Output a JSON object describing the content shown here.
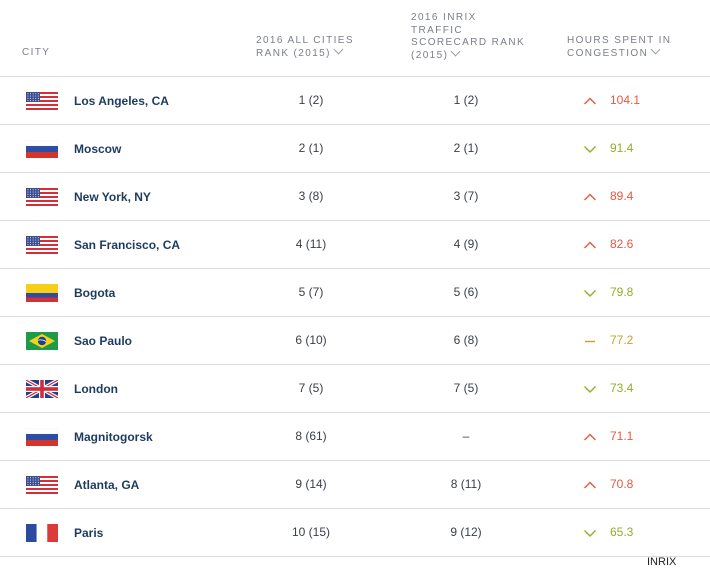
{
  "header": {
    "city": "CITY",
    "all_cities_rank": "2016 ALL CITIES RANK (2015)",
    "inrix_rank": "2016 INRIX TRAFFIC SCORECARD RANK (2015)",
    "hours": "HOURS SPENT IN CONGESTION"
  },
  "colors": {
    "up": "#e8573f",
    "down": "#8fae2c",
    "flat": "#c9a227",
    "city_text": "#1f3a5f"
  },
  "rows": [
    {
      "city": "Los Angeles, CA",
      "flag": "usa-flag-icon",
      "all_rank": "1 (2)",
      "inrix_rank": "1 (2)",
      "trend": "up",
      "hours": "104.1"
    },
    {
      "city": "Moscow",
      "flag": "russia-flag-icon",
      "all_rank": "2 (1)",
      "inrix_rank": "2 (1)",
      "trend": "down",
      "hours": "91.4"
    },
    {
      "city": "New York, NY",
      "flag": "usa-flag-icon",
      "all_rank": "3 (8)",
      "inrix_rank": "3 (7)",
      "trend": "up",
      "hours": "89.4"
    },
    {
      "city": "San Francisco, CA",
      "flag": "usa-flag-icon",
      "all_rank": "4 (11)",
      "inrix_rank": "4 (9)",
      "trend": "up",
      "hours": "82.6"
    },
    {
      "city": "Bogota",
      "flag": "colombia-flag-icon",
      "all_rank": "5 (7)",
      "inrix_rank": "5 (6)",
      "trend": "down",
      "hours": "79.8"
    },
    {
      "city": "Sao Paulo",
      "flag": "brazil-flag-icon",
      "all_rank": "6 (10)",
      "inrix_rank": "6 (8)",
      "trend": "flat",
      "hours": "77.2"
    },
    {
      "city": "London",
      "flag": "uk-flag-icon",
      "all_rank": "7 (5)",
      "inrix_rank": "7 (5)",
      "trend": "down",
      "hours": "73.4"
    },
    {
      "city": "Magnitogorsk",
      "flag": "russia-flag-icon",
      "all_rank": "8 (61)",
      "inrix_rank": "–",
      "trend": "up",
      "hours": "71.1"
    },
    {
      "city": "Atlanta, GA",
      "flag": "usa-flag-icon",
      "all_rank": "9 (14)",
      "inrix_rank": "8 (11)",
      "trend": "up",
      "hours": "70.8"
    },
    {
      "city": "Paris",
      "flag": "france-flag-icon",
      "all_rank": "10 (15)",
      "inrix_rank": "9 (12)",
      "trend": "down",
      "hours": "65.3"
    }
  ],
  "source": "INRIX"
}
